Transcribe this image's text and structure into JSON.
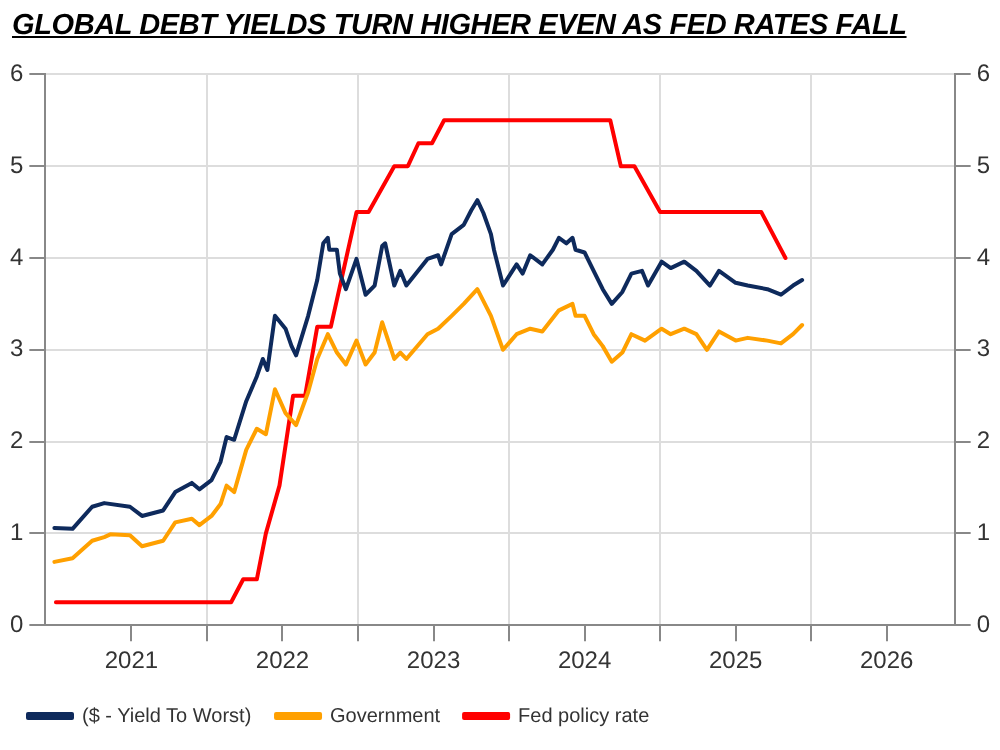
{
  "chart_data": {
    "type": "line",
    "title": "GLOBAL DEBT YIELDS TURN HIGHER EVEN AS FED RATES FALL",
    "xlim": [
      2020.93,
      2026.95
    ],
    "xticks": [
      {
        "value": 2021.5,
        "label": "2021"
      },
      {
        "value": 2022,
        "label": null
      },
      {
        "value": 2022.5,
        "label": "2022"
      },
      {
        "value": 2023,
        "label": null
      },
      {
        "value": 2023.5,
        "label": "2023"
      },
      {
        "value": 2024,
        "label": null
      },
      {
        "value": 2024.5,
        "label": "2024"
      },
      {
        "value": 2025,
        "label": null
      },
      {
        "value": 2025.5,
        "label": "2025"
      },
      {
        "value": 2026,
        "label": null
      },
      {
        "value": 2026.5,
        "label": "2026"
      }
    ],
    "ylim": [
      0,
      6
    ],
    "yticks": [
      0,
      1,
      2,
      3,
      4,
      5,
      6
    ],
    "y2lim": [
      0,
      6
    ],
    "y2ticks": [
      0,
      1,
      2,
      3,
      4,
      5,
      6
    ],
    "grid": true,
    "legend": "bottom",
    "marker": "none",
    "line_style": "solid",
    "series": [
      {
        "name": "($ - Yield To Worst)",
        "color": "#0e2a5c",
        "x": [
          2020.99,
          2021.11,
          2021.24,
          2021.32,
          2021.49,
          2021.57,
          2021.71,
          2021.79,
          2021.9,
          2021.95,
          2022.03,
          2022.09,
          2022.13,
          2022.18,
          2022.26,
          2022.33,
          2022.37,
          2022.4,
          2022.45,
          2022.52,
          2022.56,
          2022.59,
          2022.67,
          2022.73,
          2022.77,
          2022.8,
          2022.81,
          2022.86,
          2022.88,
          2022.92,
          2022.99,
          2023.05,
          2023.11,
          2023.16,
          2023.18,
          2023.24,
          2023.28,
          2023.32,
          2023.46,
          2023.53,
          2023.55,
          2023.62,
          2023.7,
          2023.75,
          2023.79,
          2023.83,
          2023.88,
          2023.9,
          2023.96,
          2024.05,
          2024.09,
          2024.14,
          2024.22,
          2024.29,
          2024.33,
          2024.38,
          2024.42,
          2024.44,
          2024.5,
          2024.56,
          2024.62,
          2024.68,
          2024.75,
          2024.81,
          2024.88,
          2024.92,
          2025.01,
          2025.07,
          2025.16,
          2025.24,
          2025.33,
          2025.39,
          2025.5,
          2025.58,
          2025.71,
          2025.8,
          2025.88,
          2025.94
        ],
        "values": [
          1.06,
          1.05,
          1.29,
          1.33,
          1.29,
          1.19,
          1.25,
          1.45,
          1.55,
          1.48,
          1.58,
          1.78,
          2.05,
          2.02,
          2.44,
          2.71,
          2.9,
          2.78,
          3.37,
          3.23,
          3.04,
          2.94,
          3.37,
          3.76,
          4.16,
          4.22,
          4.09,
          4.09,
          3.83,
          3.66,
          3.99,
          3.6,
          3.7,
          4.13,
          4.16,
          3.7,
          3.86,
          3.7,
          3.99,
          4.03,
          3.93,
          4.26,
          4.36,
          4.52,
          4.63,
          4.49,
          4.26,
          4.09,
          3.7,
          3.93,
          3.83,
          4.03,
          3.93,
          4.09,
          4.22,
          4.16,
          4.22,
          4.09,
          4.06,
          3.86,
          3.66,
          3.5,
          3.63,
          3.83,
          3.86,
          3.7,
          3.96,
          3.89,
          3.96,
          3.86,
          3.7,
          3.86,
          3.73,
          3.7,
          3.66,
          3.6,
          3.7,
          3.76
        ]
      },
      {
        "name": "Government",
        "color": "#ffa000",
        "x": [
          2020.99,
          2021.11,
          2021.24,
          2021.32,
          2021.36,
          2021.49,
          2021.57,
          2021.71,
          2021.79,
          2021.9,
          2021.95,
          2022.03,
          2022.09,
          2022.13,
          2022.18,
          2022.26,
          2022.33,
          2022.39,
          2022.45,
          2022.52,
          2022.59,
          2022.67,
          2022.73,
          2022.8,
          2022.86,
          2022.92,
          2022.99,
          2023.05,
          2023.11,
          2023.16,
          2023.24,
          2023.28,
          2023.32,
          2023.46,
          2023.53,
          2023.62,
          2023.7,
          2023.79,
          2023.88,
          2023.96,
          2024.05,
          2024.14,
          2024.22,
          2024.33,
          2024.42,
          2024.44,
          2024.5,
          2024.56,
          2024.62,
          2024.68,
          2024.75,
          2024.81,
          2024.9,
          2025.01,
          2025.07,
          2025.16,
          2025.24,
          2025.31,
          2025.39,
          2025.5,
          2025.58,
          2025.71,
          2025.8,
          2025.88,
          2025.94
        ],
        "values": [
          0.69,
          0.73,
          0.92,
          0.96,
          0.99,
          0.98,
          0.86,
          0.92,
          1.12,
          1.16,
          1.09,
          1.19,
          1.32,
          1.52,
          1.45,
          1.91,
          2.14,
          2.08,
          2.57,
          2.31,
          2.18,
          2.54,
          2.9,
          3.17,
          2.97,
          2.84,
          3.1,
          2.84,
          2.97,
          3.3,
          2.9,
          2.97,
          2.9,
          3.17,
          3.23,
          3.37,
          3.5,
          3.66,
          3.37,
          3.0,
          3.17,
          3.23,
          3.2,
          3.43,
          3.5,
          3.37,
          3.37,
          3.17,
          3.04,
          2.87,
          2.97,
          3.17,
          3.1,
          3.23,
          3.17,
          3.23,
          3.17,
          3.0,
          3.2,
          3.1,
          3.13,
          3.1,
          3.07,
          3.17,
          3.27
        ]
      },
      {
        "name": "Fed policy rate",
        "color": "#ff0000",
        "x": [
          2021.0,
          2022.16,
          2022.24,
          2022.33,
          2022.39,
          2022.48,
          2022.57,
          2022.65,
          2022.73,
          2022.82,
          2022.99,
          2023.07,
          2023.24,
          2023.33,
          2023.4,
          2023.49,
          2023.57,
          2024.67,
          2024.74,
          2024.83,
          2025.0,
          2025.67,
          2025.83
        ],
        "values": [
          0.25,
          0.25,
          0.5,
          0.5,
          1.0,
          1.52,
          2.5,
          2.5,
          3.25,
          3.25,
          4.5,
          4.5,
          5.0,
          5.0,
          5.25,
          5.25,
          5.5,
          5.5,
          5.0,
          5.0,
          4.5,
          4.5,
          4.0
        ]
      }
    ]
  }
}
